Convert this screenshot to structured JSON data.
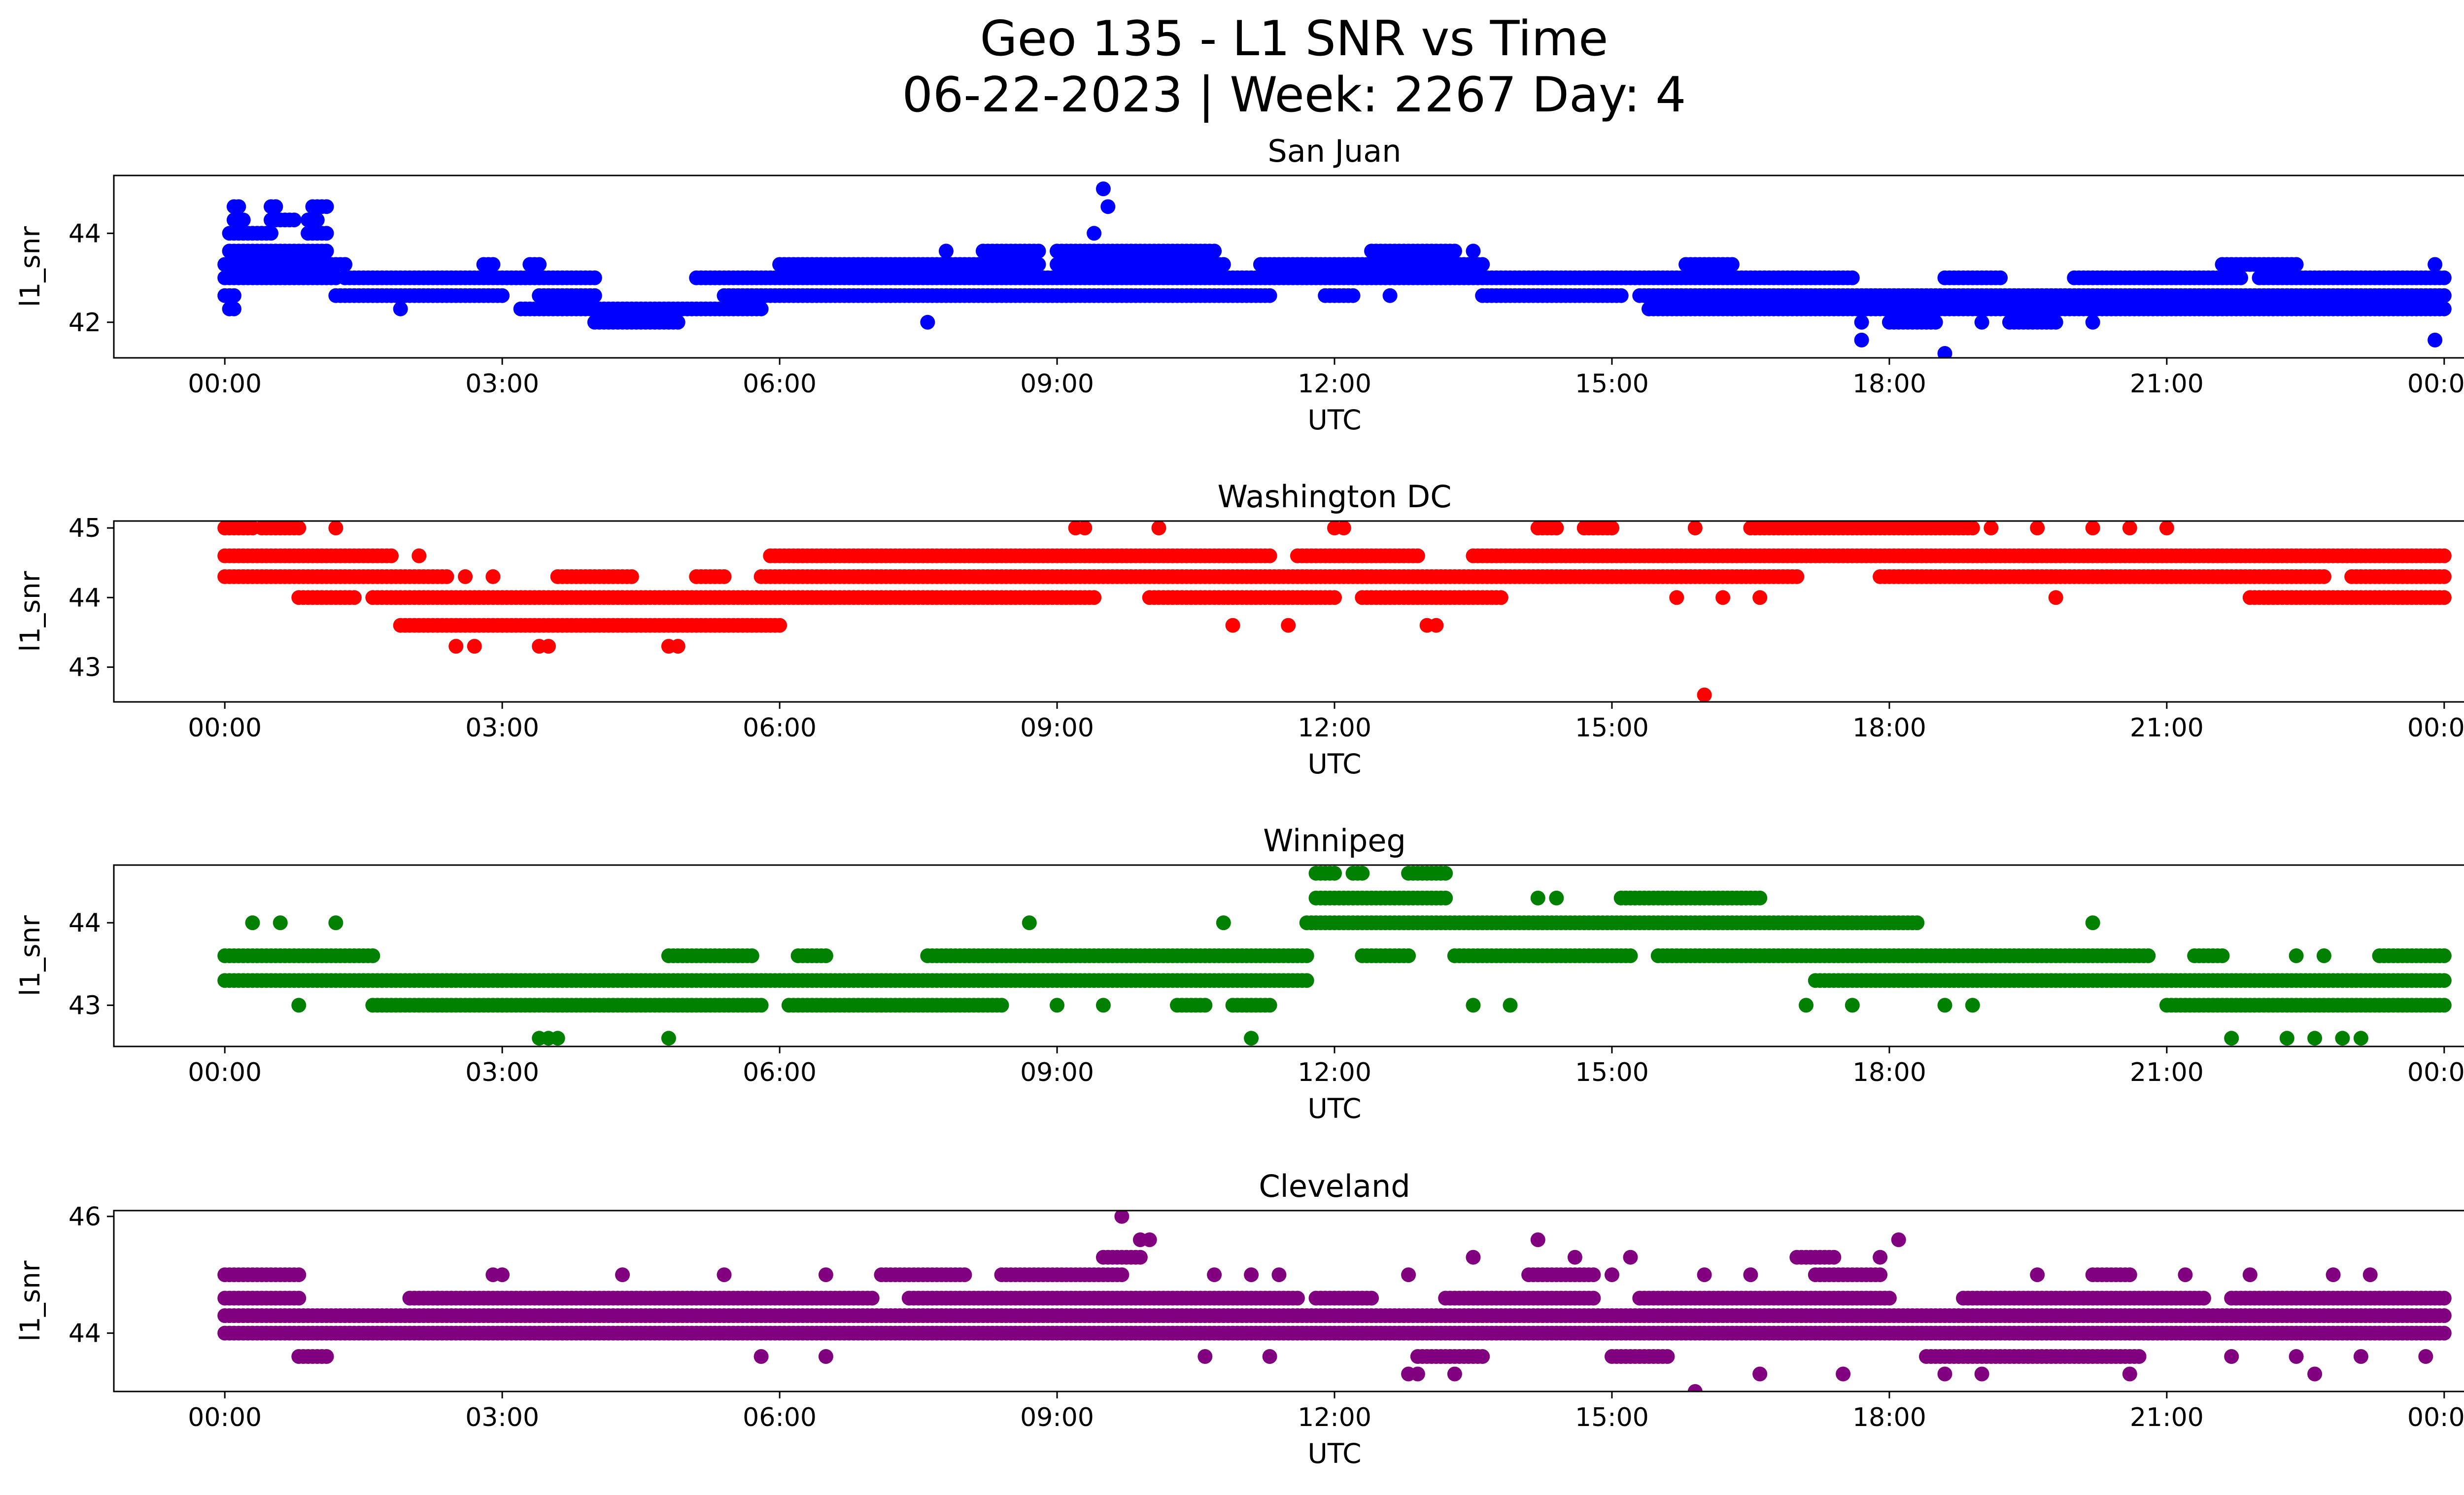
{
  "figure": {
    "title_line1": "Geo 135 - L1 SNR vs Time",
    "title_line2": "06-22-2023 | Week: 2267 Day: 4"
  },
  "chart_data": [
    {
      "type": "scatter",
      "title": "San Juan",
      "xlabel": "UTC",
      "ylabel": "l1_snr",
      "color": "#0000ff",
      "xlim": [
        -1.2,
        25.2
      ],
      "ylim": [
        41.2,
        45.3
      ],
      "xticks": [
        0,
        3,
        6,
        9,
        12,
        15,
        18,
        21,
        24
      ],
      "xtick_labels": [
        "00:00",
        "03:00",
        "06:00",
        "09:00",
        "12:00",
        "15:00",
        "18:00",
        "21:00",
        "00:00"
      ],
      "yticks": [
        42,
        44
      ],
      "ytick_labels": [
        "42",
        "44"
      ],
      "bands": [
        {
          "y": 43.3,
          "segments": [
            [
              0.0,
              1.3
            ],
            [
              2.8,
              2.9
            ],
            [
              3.3,
              3.4
            ],
            [
              6.0,
              8.8
            ],
            [
              9.0,
              10.8
            ],
            [
              11.2,
              13.6
            ],
            [
              15.8,
              16.3
            ],
            [
              21.6,
              22.4
            ]
          ]
        },
        {
          "y": 43.0,
          "segments": [
            [
              0.0,
              1.2
            ],
            [
              1.3,
              4.0
            ],
            [
              5.1,
              17.6
            ],
            [
              18.6,
              19.2
            ],
            [
              20.0,
              21.8
            ],
            [
              22.0,
              24.0
            ]
          ]
        },
        {
          "y": 42.6,
          "segments": [
            [
              0.0,
              0.1
            ],
            [
              1.2,
              3.0
            ],
            [
              3.4,
              4.0
            ],
            [
              5.4,
              11.3
            ],
            [
              11.9,
              12.2
            ],
            [
              13.6,
              15.1
            ],
            [
              15.3,
              24.0
            ]
          ]
        },
        {
          "y": 42.3,
          "segments": [
            [
              0.05,
              0.1
            ],
            [
              3.2,
              5.8
            ],
            [
              15.4,
              24.0
            ]
          ]
        },
        {
          "y": 42.0,
          "segments": [
            [
              4.0,
              4.9
            ],
            [
              18.0,
              18.5
            ],
            [
              19.3,
              19.8
            ]
          ]
        },
        {
          "y": 43.6,
          "segments": [
            [
              0.05,
              1.1
            ],
            [
              8.2,
              8.8
            ],
            [
              9.0,
              10.7
            ],
            [
              12.4,
              13.3
            ]
          ]
        },
        {
          "y": 44.0,
          "segments": [
            [
              0.05,
              0.5
            ],
            [
              0.9,
              1.1
            ]
          ]
        },
        {
          "y": 44.3,
          "segments": [
            [
              0.1,
              0.2
            ],
            [
              0.5,
              0.75
            ],
            [
              0.9,
              1.0
            ]
          ]
        },
        {
          "y": 44.6,
          "segments": [
            [
              0.1,
              0.15
            ],
            [
              0.5,
              0.55
            ],
            [
              0.95,
              1.1
            ]
          ]
        }
      ],
      "points": [
        [
          9.5,
          45.0
        ],
        [
          9.55,
          44.6
        ],
        [
          9.4,
          44.0
        ],
        [
          7.6,
          42.0
        ],
        [
          7.8,
          43.6
        ],
        [
          7.2,
          42.6
        ],
        [
          17.7,
          41.6
        ],
        [
          17.7,
          42.0
        ],
        [
          18.6,
          41.3
        ],
        [
          23.9,
          41.6
        ],
        [
          16.3,
          42.3
        ],
        [
          20.2,
          42.0
        ],
        [
          19.0,
          42.0
        ],
        [
          21.9,
          43.3
        ],
        [
          23.9,
          43.3
        ],
        [
          1.9,
          42.3
        ],
        [
          13.5,
          43.6
        ],
        [
          12.6,
          42.6
        ]
      ]
    },
    {
      "type": "scatter",
      "title": "Washington DC",
      "xlabel": "UTC",
      "ylabel": "l1_snr",
      "color": "#ff0000",
      "xlim": [
        -1.2,
        25.2
      ],
      "ylim": [
        42.5,
        45.1
      ],
      "xticks": [
        0,
        3,
        6,
        9,
        12,
        15,
        18,
        21,
        24
      ],
      "xtick_labels": [
        "00:00",
        "03:00",
        "06:00",
        "09:00",
        "12:00",
        "15:00",
        "18:00",
        "21:00",
        "00:00"
      ],
      "yticks": [
        43,
        44,
        45
      ],
      "ytick_labels": [
        "43",
        "44",
        "45"
      ],
      "bands": [
        {
          "y": 44.6,
          "segments": [
            [
              0.0,
              1.8
            ],
            [
              5.9,
              11.3
            ],
            [
              11.6,
              12.9
            ],
            [
              13.5,
              24.0
            ]
          ]
        },
        {
          "y": 44.3,
          "segments": [
            [
              0.0,
              2.4
            ],
            [
              3.6,
              4.4
            ],
            [
              5.1,
              5.4
            ],
            [
              5.8,
              17.0
            ],
            [
              17.9,
              22.7
            ],
            [
              23.0,
              24.0
            ]
          ]
        },
        {
          "y": 44.0,
          "segments": [
            [
              0.8,
              1.4
            ],
            [
              1.6,
              9.4
            ],
            [
              10.0,
              12.0
            ],
            [
              12.3,
              13.8
            ],
            [
              21.9,
              24.0
            ]
          ]
        },
        {
          "y": 43.6,
          "segments": [
            [
              1.9,
              6.0
            ]
          ]
        },
        {
          "y": 45.0,
          "segments": [
            [
              0.0,
              0.3
            ],
            [
              0.4,
              0.8
            ],
            [
              14.2,
              14.4
            ],
            [
              14.7,
              15.0
            ],
            [
              16.5,
              18.9
            ]
          ]
        }
      ],
      "points": [
        [
          2.5,
          43.3
        ],
        [
          2.7,
          43.3
        ],
        [
          3.4,
          43.3
        ],
        [
          3.5,
          43.3
        ],
        [
          4.9,
          43.3
        ],
        [
          4.8,
          43.3
        ],
        [
          10.9,
          43.6
        ],
        [
          11.5,
          43.6
        ],
        [
          13.0,
          43.6
        ],
        [
          13.1,
          43.6
        ],
        [
          16.0,
          42.6
        ],
        [
          19.8,
          44.0
        ],
        [
          10.1,
          45.0
        ],
        [
          9.3,
          45.0
        ],
        [
          9.2,
          45.0
        ],
        [
          12.0,
          45.0
        ],
        [
          12.1,
          45.0
        ],
        [
          15.9,
          45.0
        ],
        [
          19.1,
          45.0
        ],
        [
          19.6,
          45.0
        ],
        [
          20.2,
          45.0
        ],
        [
          20.6,
          45.0
        ],
        [
          21.0,
          45.0
        ],
        [
          1.2,
          45.0
        ],
        [
          2.1,
          44.6
        ],
        [
          2.6,
          44.3
        ],
        [
          2.9,
          44.3
        ],
        [
          15.7,
          44.0
        ],
        [
          16.2,
          44.0
        ],
        [
          16.6,
          44.0
        ]
      ]
    },
    {
      "type": "scatter",
      "title": "Winnipeg",
      "xlabel": "UTC",
      "ylabel": "l1_snr",
      "color": "#008000",
      "xlim": [
        -1.2,
        25.2
      ],
      "ylim": [
        42.5,
        44.7
      ],
      "xticks": [
        0,
        3,
        6,
        9,
        12,
        15,
        18,
        21,
        24
      ],
      "xtick_labels": [
        "00:00",
        "03:00",
        "06:00",
        "09:00",
        "12:00",
        "15:00",
        "18:00",
        "21:00",
        "00:00"
      ],
      "yticks": [
        43,
        44
      ],
      "ytick_labels": [
        "43",
        "44"
      ],
      "bands": [
        {
          "y": 43.3,
          "segments": [
            [
              0.0,
              11.7
            ],
            [
              17.2,
              24.0
            ]
          ]
        },
        {
          "y": 43.0,
          "segments": [
            [
              1.6,
              5.8
            ],
            [
              6.1,
              8.4
            ],
            [
              10.3,
              10.6
            ],
            [
              10.9,
              11.3
            ],
            [
              21.0,
              24.0
            ]
          ]
        },
        {
          "y": 43.6,
          "segments": [
            [
              0.0,
              1.6
            ],
            [
              4.8,
              5.7
            ],
            [
              6.2,
              6.5
            ],
            [
              7.6,
              11.7
            ],
            [
              12.3,
              12.8
            ],
            [
              13.3,
              15.2
            ],
            [
              15.5,
              20.8
            ],
            [
              21.3,
              21.6
            ],
            [
              23.3,
              24.0
            ]
          ]
        },
        {
          "y": 44.0,
          "segments": [
            [
              11.7,
              18.3
            ]
          ]
        },
        {
          "y": 44.3,
          "segments": [
            [
              11.8,
              13.2
            ],
            [
              15.1,
              16.6
            ]
          ]
        },
        {
          "y": 44.6,
          "segments": [
            [
              11.8,
              12.0
            ],
            [
              12.2,
              12.3
            ],
            [
              12.8,
              13.2
            ]
          ]
        }
      ],
      "points": [
        [
          0.3,
          44.0
        ],
        [
          0.6,
          44.0
        ],
        [
          1.2,
          44.0
        ],
        [
          0.8,
          43.0
        ],
        [
          3.4,
          42.6
        ],
        [
          3.5,
          42.6
        ],
        [
          3.6,
          42.6
        ],
        [
          4.8,
          42.6
        ],
        [
          8.7,
          44.0
        ],
        [
          10.8,
          44.0
        ],
        [
          11.1,
          42.6
        ],
        [
          9.0,
          43.0
        ],
        [
          9.5,
          43.0
        ],
        [
          17.1,
          43.0
        ],
        [
          17.6,
          43.0
        ],
        [
          18.6,
          43.0
        ],
        [
          18.9,
          43.0
        ],
        [
          21.7,
          42.6
        ],
        [
          22.3,
          42.6
        ],
        [
          22.6,
          42.6
        ],
        [
          22.9,
          42.6
        ],
        [
          23.1,
          42.6
        ],
        [
          13.5,
          43.0
        ],
        [
          13.9,
          43.0
        ],
        [
          14.2,
          44.3
        ],
        [
          14.4,
          44.3
        ],
        [
          16.4,
          44.3
        ],
        [
          20.2,
          44.0
        ],
        [
          22.4,
          43.6
        ],
        [
          22.7,
          43.6
        ]
      ]
    },
    {
      "type": "scatter",
      "title": "Cleveland",
      "xlabel": "UTC",
      "ylabel": "l1_snr",
      "color": "#800080",
      "xlim": [
        -1.2,
        25.2
      ],
      "ylim": [
        43.0,
        46.1
      ],
      "xticks": [
        0,
        3,
        6,
        9,
        12,
        15,
        18,
        21,
        24
      ],
      "xtick_labels": [
        "00:00",
        "03:00",
        "06:00",
        "09:00",
        "12:00",
        "15:00",
        "18:00",
        "21:00",
        "00:00"
      ],
      "yticks": [
        44,
        46
      ],
      "ytick_labels": [
        "44",
        "46"
      ],
      "bands": [
        {
          "y": 44.3,
          "segments": [
            [
              0.0,
              24.0
            ]
          ]
        },
        {
          "y": 44.0,
          "segments": [
            [
              0.0,
              24.0
            ]
          ]
        },
        {
          "y": 44.6,
          "segments": [
            [
              0.0,
              0.8
            ],
            [
              2.0,
              2.3
            ],
            [
              2.3,
              7.0
            ],
            [
              7.4,
              11.6
            ],
            [
              11.8,
              12.4
            ],
            [
              13.2,
              14.8
            ],
            [
              15.3,
              18.0
            ],
            [
              18.8,
              21.4
            ],
            [
              21.7,
              24.0
            ]
          ]
        },
        {
          "y": 43.6,
          "segments": [
            [
              0.8,
              1.1
            ],
            [
              12.9,
              13.6
            ],
            [
              15.0,
              15.6
            ],
            [
              18.4,
              20.7
            ]
          ]
        },
        {
          "y": 45.0,
          "segments": [
            [
              0.0,
              0.8
            ],
            [
              7.1,
              8.0
            ],
            [
              8.4,
              9.7
            ],
            [
              14.1,
              14.8
            ],
            [
              17.2,
              17.9
            ],
            [
              20.2,
              20.6
            ]
          ]
        },
        {
          "y": 45.3,
          "segments": [
            [
              9.5,
              9.9
            ],
            [
              17.0,
              17.4
            ]
          ]
        }
      ],
      "points": [
        [
          9.7,
          46.0
        ],
        [
          9.9,
          45.6
        ],
        [
          10.0,
          45.6
        ],
        [
          14.2,
          45.6
        ],
        [
          18.1,
          45.6
        ],
        [
          15.9,
          43.0
        ],
        [
          12.8,
          43.3
        ],
        [
          12.9,
          43.3
        ],
        [
          13.3,
          43.3
        ],
        [
          16.6,
          43.3
        ],
        [
          17.5,
          43.3
        ],
        [
          18.6,
          43.3
        ],
        [
          19.0,
          43.3
        ],
        [
          20.6,
          43.3
        ],
        [
          22.6,
          43.3
        ],
        [
          2.9,
          45.0
        ],
        [
          3.0,
          45.0
        ],
        [
          4.3,
          45.0
        ],
        [
          5.4,
          45.0
        ],
        [
          6.5,
          45.0
        ],
        [
          10.7,
          45.0
        ],
        [
          11.1,
          45.0
        ],
        [
          11.4,
          45.0
        ],
        [
          12.8,
          45.0
        ],
        [
          15.0,
          45.0
        ],
        [
          16.0,
          45.0
        ],
        [
          16.5,
          45.0
        ],
        [
          21.9,
          45.0
        ],
        [
          22.8,
          45.0
        ],
        [
          23.2,
          45.0
        ],
        [
          10.6,
          43.6
        ],
        [
          11.3,
          43.6
        ],
        [
          6.5,
          43.6
        ],
        [
          5.8,
          43.6
        ],
        [
          21.7,
          43.6
        ],
        [
          22.4,
          43.6
        ],
        [
          23.1,
          43.6
        ],
        [
          23.8,
          43.6
        ],
        [
          13.5,
          45.3
        ],
        [
          14.6,
          45.3
        ],
        [
          15.2,
          45.3
        ],
        [
          17.9,
          45.3
        ],
        [
          19.6,
          45.0
        ],
        [
          21.2,
          45.0
        ]
      ]
    }
  ]
}
